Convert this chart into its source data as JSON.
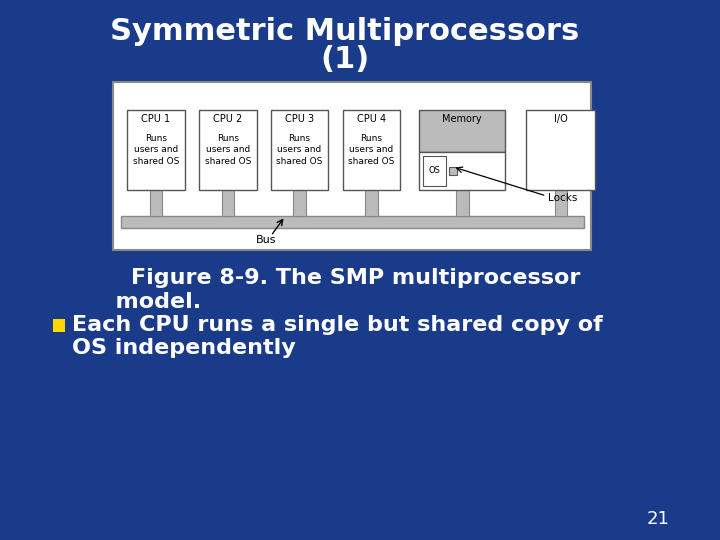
{
  "title_line1": "Symmetric Multiprocessors",
  "title_line2": "(1)",
  "title_color": "#FFFFFF",
  "title_fontsize": 22,
  "bg_color": "#1a3a8a",
  "slide_number": "21",
  "figure_caption_line1": "    Figure 8-9. The SMP multiprocessor",
  "figure_caption_line2": "  model.",
  "bullet_line1": "Each CPU runs a single but shared copy of",
  "bullet_line2": "OS independently",
  "bullet_color": "#FFFFFF",
  "caption_color": "#FFFFFF",
  "bullet_marker_color": "#FFD700",
  "text_fontsize": 16,
  "cpu_labels": [
    "CPU 1",
    "CPU 2",
    "CPU 3",
    "CPU 4"
  ],
  "cpu_box_texts": [
    "Runs\nusers and\nshared OS",
    "Runs\nusers and\nshared OS",
    "Runs\nusers and\nshared OS",
    "Runs\nusers and\nshared OS"
  ],
  "diagram_bg": "#FFFFFF",
  "diagram_border": "#888888",
  "box_fill": "#FFFFFF",
  "box_border": "#555555",
  "memory_gray_fill": "#BBBBBB",
  "bus_bar_color": "#BBBBBB",
  "bus_bar_border": "#888888",
  "leg_fill": "#BBBBBB",
  "leg_border": "#888888"
}
